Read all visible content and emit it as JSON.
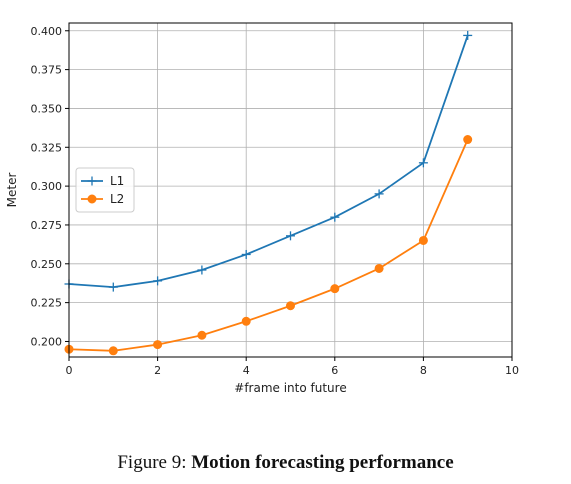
{
  "chart_data": {
    "type": "line",
    "title": "",
    "xlabel": "#frame into future",
    "ylabel": "Meter",
    "xlim": [
      0,
      10
    ],
    "ylim": [
      0.19,
      0.405
    ],
    "x_ticks": [
      0,
      2,
      4,
      6,
      8,
      10
    ],
    "y_ticks": [
      0.2,
      0.225,
      0.25,
      0.275,
      0.3,
      0.325,
      0.35,
      0.375,
      0.4
    ],
    "grid": true,
    "legend_position": "center-left",
    "series": [
      {
        "name": "L1",
        "marker": "plus",
        "color": "#1f77b4",
        "x": [
          0,
          1,
          2,
          3,
          4,
          5,
          6,
          7,
          8,
          9
        ],
        "y": [
          0.237,
          0.235,
          0.239,
          0.246,
          0.256,
          0.268,
          0.28,
          0.295,
          0.315,
          0.397
        ]
      },
      {
        "name": "L2",
        "marker": "circle",
        "color": "#ff7f0e",
        "x": [
          0,
          1,
          2,
          3,
          4,
          5,
          6,
          7,
          8,
          9
        ],
        "y": [
          0.195,
          0.194,
          0.198,
          0.204,
          0.213,
          0.223,
          0.234,
          0.247,
          0.265,
          0.33
        ]
      }
    ]
  },
  "caption": {
    "prefix": "Figure 9:",
    "title": "Motion forecasting performance"
  }
}
